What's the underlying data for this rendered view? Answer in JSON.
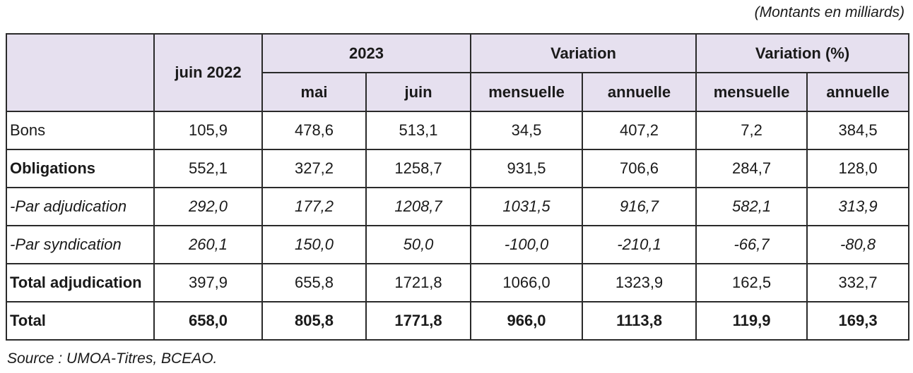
{
  "unit_note": "(Montants en milliards)",
  "header": {
    "col_juin2022": "juin 2022",
    "group_2023": "2023",
    "group_variation": "Variation",
    "group_variation_pct": "Variation (%)",
    "sub_mai": "mai",
    "sub_juin": "juin",
    "sub_mensuelle": "mensuelle",
    "sub_annuelle": "annuelle",
    "sub_mensuelle_pct": "mensuelle",
    "sub_annuelle_pct": "annuelle"
  },
  "rows": [
    {
      "label": "Bons",
      "values": [
        "105,9",
        "478,6",
        "513,1",
        "34,5",
        "407,2",
        "7,2",
        "384,5"
      ]
    },
    {
      "label": "Obligations",
      "values": [
        "552,1",
        "327,2",
        "1258,7",
        "931,5",
        "706,6",
        "284,7",
        "128,0"
      ]
    },
    {
      "label": "-Par adjudication",
      "values": [
        "292,0",
        "177,2",
        "1208,7",
        "1031,5",
        "916,7",
        "582,1",
        "313,9"
      ]
    },
    {
      "label": "-Par syndication",
      "values": [
        "260,1",
        "150,0",
        "50,0",
        "-100,0",
        "-210,1",
        "-66,7",
        "-80,8"
      ]
    },
    {
      "label": "Total adjudication",
      "values": [
        "397,9",
        "655,8",
        "1721,8",
        "1066,0",
        "1323,9",
        "162,5",
        "332,7"
      ]
    },
    {
      "label": "Total",
      "values": [
        "658,0",
        "805,8",
        "1771,8",
        "966,0",
        "1113,8",
        "119,9",
        "169,3"
      ]
    }
  ],
  "source": "Source : UMOA-Titres, BCEAO.",
  "colors": {
    "header_bg": "#e6e0ef",
    "border": "#2a2a2a"
  }
}
